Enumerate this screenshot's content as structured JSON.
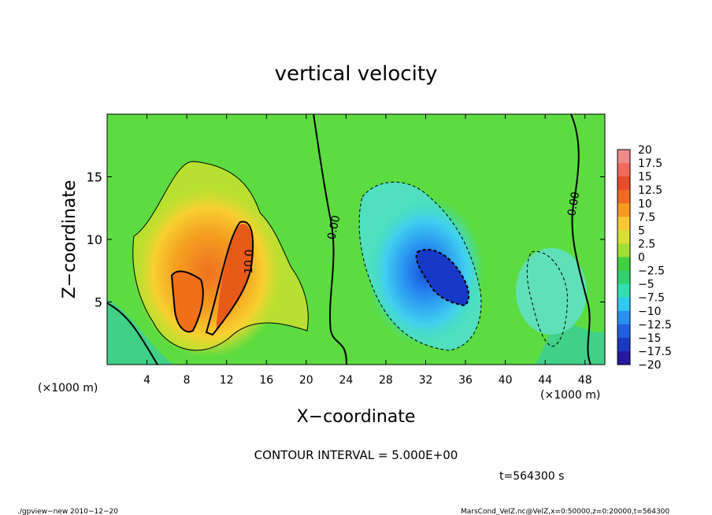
{
  "chart_data": {
    "type": "heatmap",
    "title": "vertical velocity",
    "xlabel": "X−coordinate",
    "ylabel": "Z−coordinate",
    "x_unit_left": "(×1000 m)",
    "x_unit_right": "(×1000 m)",
    "xlim": [
      0,
      50
    ],
    "ylim": [
      0,
      20
    ],
    "xticks": [
      4,
      8,
      12,
      16,
      20,
      24,
      28,
      32,
      36,
      40,
      44,
      48
    ],
    "yticks": [
      5,
      10,
      15
    ],
    "colorbar": {
      "levels": [
        "20",
        "17.5",
        "15",
        "12.5",
        "10",
        "7.5",
        "5",
        "2.5",
        "0",
        "−2.5",
        "−5",
        "−7.5",
        "−10",
        "−12.5",
        "−15",
        "−17.5",
        "−20"
      ],
      "colors": [
        "#f08a8a",
        "#f06a5a",
        "#e84a2a",
        "#f06a20",
        "#f49a20",
        "#f8c830",
        "#d8e030",
        "#a0e030",
        "#40d040",
        "#30d070",
        "#30e0b0",
        "#30c8f0",
        "#2890f0",
        "#2060e0",
        "#1838c0",
        "#2818a0",
        "#7020c0"
      ]
    },
    "contour_labels": [
      "0.00",
      "10.0",
      "0.00"
    ],
    "contour_interval": "CONTOUR INTERVAL = 5.000E+00",
    "time": "t=564300  s",
    "features": [
      {
        "sign": "positive",
        "x": 11,
        "z": 7,
        "peak": 12.5
      },
      {
        "sign": "negative",
        "x": 33.5,
        "z": 7,
        "peak": -12.5
      }
    ]
  },
  "footer": {
    "left": "./gpview−new   2010−12−20",
    "right": "MarsCond_VelZ.nc@VelZ,x=0:50000,z=0:20000,t=564300"
  },
  "colors": {
    "field_background": "#5cdc40"
  }
}
